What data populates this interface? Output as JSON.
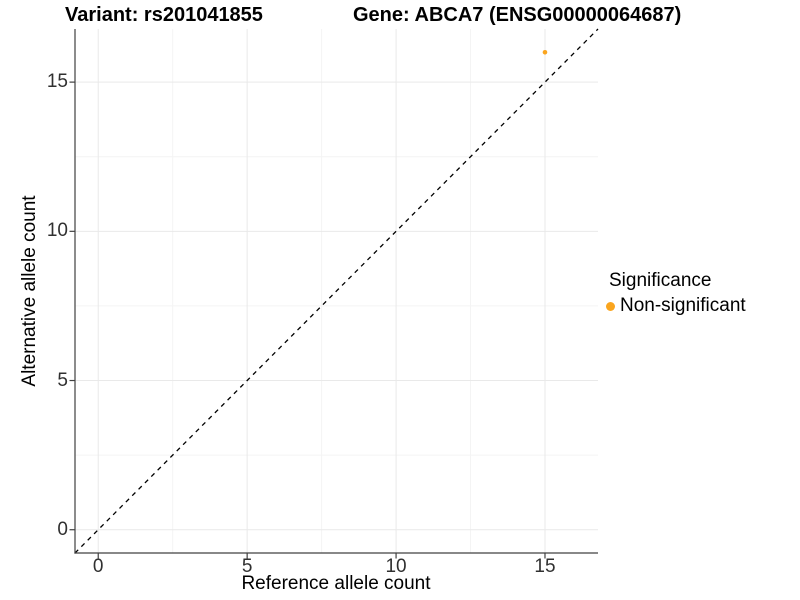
{
  "chart_data": {
    "type": "scatter",
    "title_left": "Variant: rs201041855",
    "title_right": "Gene: ABCA7 (ENSG00000064687)",
    "xlabel": "Reference allele count",
    "ylabel": "Alternative allele count",
    "xlim": [
      -0.78,
      16.78
    ],
    "ylim": [
      -0.78,
      16.78
    ],
    "x_breaks": [
      0,
      5,
      10,
      15
    ],
    "y_breaks": [
      0,
      5,
      10,
      15
    ],
    "x_minor_breaks": [
      2.5,
      7.5,
      12.5
    ],
    "y_minor_breaks": [
      2.5,
      7.5,
      12.5
    ],
    "points": [
      {
        "x": 15,
        "y": 16,
        "series": "Non-significant"
      }
    ],
    "reference_line": {
      "type": "identity",
      "slope": 1,
      "intercept": 0,
      "style": "dashed",
      "color": "#000000"
    },
    "grid": {
      "major_color": "#e9e9e9",
      "minor_color": "#f4f4f4",
      "background": "#ffffff"
    },
    "axis_color": "#404040",
    "point_color": "#FAA51E",
    "point_radius": 2.3,
    "legend": {
      "title": "Significance",
      "position": "right",
      "items": [
        {
          "label": "Non-significant",
          "color": "#FAA51E"
        }
      ]
    }
  }
}
